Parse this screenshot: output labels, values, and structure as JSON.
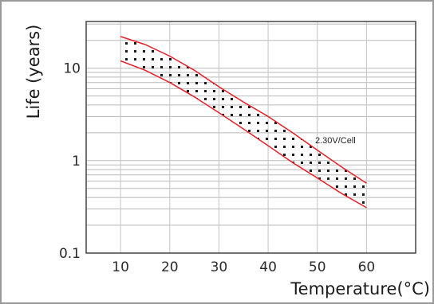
{
  "chart_data": {
    "type": "area",
    "xlabel": "Temperature(°C)",
    "ylabel": "Life (years)",
    "x_ticks": [
      "10",
      "20",
      "30",
      "40",
      "50",
      "60"
    ],
    "y_ticks": [
      "0.1",
      "1",
      "10"
    ],
    "xlim": [
      3,
      70
    ],
    "ylim": [
      0.1,
      32
    ],
    "y_scale": "log",
    "grid": "horizontal",
    "annotation": "2.30V/Cell",
    "series": [
      {
        "role": "upper",
        "color": "#e8202a",
        "points": [
          [
            10,
            22
          ],
          [
            15,
            18
          ],
          [
            20,
            13.5
          ],
          [
            25,
            9.5
          ],
          [
            30,
            6.3
          ],
          [
            35,
            4.3
          ],
          [
            40,
            3.0
          ],
          [
            45,
            2.0
          ],
          [
            50,
            1.3
          ],
          [
            55,
            0.85
          ],
          [
            60,
            0.57
          ]
        ]
      },
      {
        "role": "lower",
        "color": "#e8202a",
        "points": [
          [
            10,
            12
          ],
          [
            15,
            9.5
          ],
          [
            20,
            7.0
          ],
          [
            25,
            4.9
          ],
          [
            30,
            3.3
          ],
          [
            35,
            2.2
          ],
          [
            40,
            1.45
          ],
          [
            45,
            0.95
          ],
          [
            50,
            0.65
          ],
          [
            55,
            0.44
          ],
          [
            60,
            0.31
          ]
        ]
      }
    ],
    "fill": "dotted"
  }
}
